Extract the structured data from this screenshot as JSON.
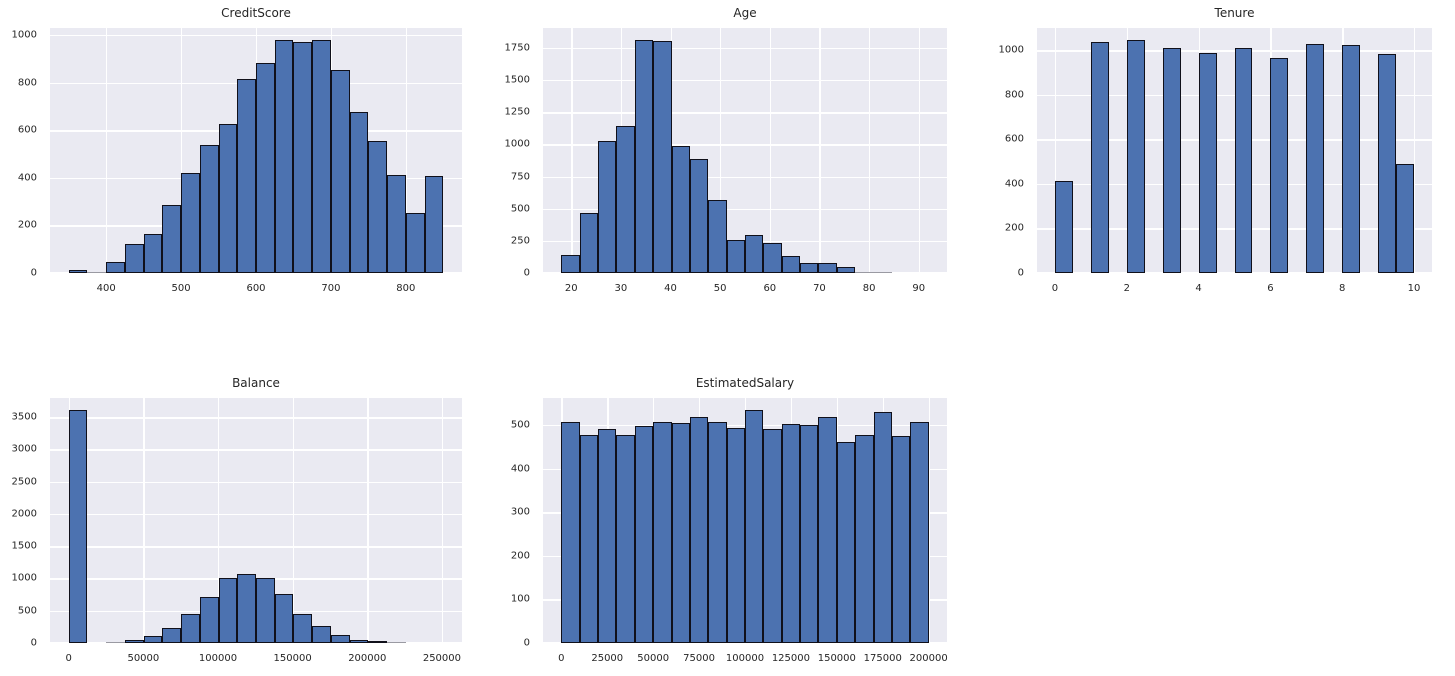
{
  "figure": {
    "background": "#ffffff",
    "style": {
      "bar_fill": "#4c72b0",
      "bar_edge": "#10101a",
      "tiny_bar_color": "#9a9aa2",
      "plot_background": "#eaeaf2",
      "grid_color": "#ffffff",
      "text_color": "#262626"
    }
  },
  "chart_data": [
    {
      "type": "bar",
      "subtype": "histogram",
      "title": "CreditScore",
      "grid": true,
      "bin_start": 350,
      "bin_width": 25,
      "values": [
        11,
        3,
        45,
        120,
        165,
        285,
        420,
        540,
        627,
        816,
        882,
        981,
        972,
        981,
        854,
        675,
        556,
        412,
        253,
        406
      ],
      "xlim": [
        325,
        875
      ],
      "ylim": [
        0,
        1030
      ],
      "xticks": [
        400,
        500,
        600,
        700,
        800
      ],
      "yticks": [
        0,
        200,
        400,
        600,
        800,
        1000
      ]
    },
    {
      "type": "bar",
      "subtype": "histogram",
      "title": "Age",
      "grid": true,
      "bin_start": 18,
      "bin_width": 3.7,
      "values": [
        140,
        470,
        1030,
        1145,
        1815,
        1808,
        990,
        883,
        570,
        255,
        295,
        230,
        135,
        80,
        80,
        50,
        9,
        4,
        1,
        2
      ],
      "xlim": [
        14.3,
        95.7
      ],
      "ylim": [
        0,
        1906
      ],
      "xticks": [
        20,
        30,
        40,
        50,
        60,
        70,
        80,
        90
      ],
      "yticks": [
        0,
        250,
        500,
        750,
        1000,
        1250,
        1500,
        1750
      ]
    },
    {
      "type": "bar",
      "subtype": "histogram",
      "title": "Tenure",
      "grid": true,
      "bin_start": 0,
      "bin_width": 0.5,
      "values": [
        413,
        0,
        1035,
        0,
        1048,
        0,
        1009,
        0,
        989,
        0,
        1012,
        0,
        967,
        0,
        1028,
        0,
        1025,
        0,
        984,
        490
      ],
      "xlim": [
        -0.5,
        10.5
      ],
      "ylim": [
        0,
        1100
      ],
      "xticks": [
        0,
        2,
        4,
        6,
        8,
        10
      ],
      "yticks": [
        0,
        200,
        400,
        600,
        800,
        1000
      ]
    },
    {
      "type": "bar",
      "subtype": "histogram",
      "title": "Balance",
      "grid": true,
      "bin_start": 0,
      "bin_width": 12545,
      "values": [
        3617,
        0,
        12,
        48,
        110,
        240,
        455,
        715,
        1000,
        1070,
        1000,
        755,
        445,
        265,
        128,
        42,
        25,
        8,
        1,
        2
      ],
      "xlim": [
        -12545,
        263443
      ],
      "ylim": [
        0,
        3798
      ],
      "xticks": [
        0,
        50000,
        100000,
        150000,
        200000,
        250000
      ],
      "yticks": [
        0,
        500,
        1000,
        1500,
        2000,
        2500,
        3000,
        3500
      ]
    },
    {
      "type": "bar",
      "subtype": "histogram",
      "title": "EstimatedSalary",
      "grid": true,
      "bin_start": 12,
      "bin_width": 9999,
      "values": [
        507,
        477,
        490,
        477,
        497,
        507,
        505,
        519,
        507,
        493,
        535,
        490,
        503,
        501,
        519,
        462,
        477,
        531,
        475,
        507
      ],
      "xlim": [
        -9987,
        209991
      ],
      "ylim": [
        0,
        562
      ],
      "xticks": [
        0,
        25000,
        50000,
        75000,
        100000,
        125000,
        150000,
        175000,
        200000
      ],
      "yticks": [
        0,
        100,
        200,
        300,
        400,
        500
      ]
    }
  ]
}
